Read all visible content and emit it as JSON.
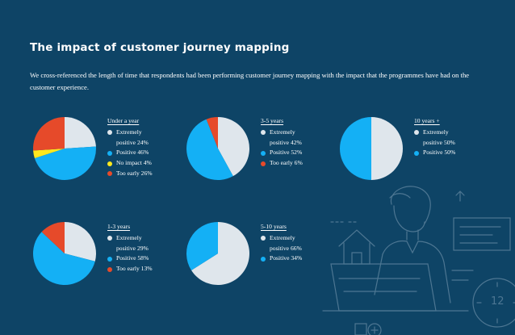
{
  "page": {
    "title": "The impact of customer journey mapping",
    "intro": "We cross-referenced the length of time that respondents had been performing customer journey mapping with the impact that the programmes have had on the customer experience.",
    "page_number": "12"
  },
  "colors": {
    "background": "#0e4466",
    "extremely_positive": "#dfe6ec",
    "positive": "#14b0f5",
    "no_impact": "#ffe81e",
    "too_early": "#e64a2a"
  },
  "chart_data": [
    {
      "type": "pie",
      "title": "Under a year",
      "start_angle_deg": 0,
      "series": [
        {
          "name": "Extremely positive",
          "value": 24,
          "label_lines": [
            "Extremely",
            "positive 24%"
          ],
          "color": "#dfe6ec"
        },
        {
          "name": "Positive",
          "value": 46,
          "label_lines": [
            "Positive 46%"
          ],
          "color": "#14b0f5"
        },
        {
          "name": "No impact",
          "value": 4,
          "label_lines": [
            "No impact 4%"
          ],
          "color": "#ffe81e"
        },
        {
          "name": "Too early",
          "value": 26,
          "label_lines": [
            "Too early 26%"
          ],
          "color": "#e64a2a"
        }
      ]
    },
    {
      "type": "pie",
      "title": "3-5 years",
      "start_angle_deg": 0,
      "series": [
        {
          "name": "Extremely positive",
          "value": 42,
          "label_lines": [
            "Extremely",
            "positive 42%"
          ],
          "color": "#dfe6ec"
        },
        {
          "name": "Positive",
          "value": 52,
          "label_lines": [
            "Positive 52%"
          ],
          "color": "#14b0f5"
        },
        {
          "name": "Too early",
          "value": 6,
          "label_lines": [
            "Too early 6%"
          ],
          "color": "#e64a2a"
        }
      ]
    },
    {
      "type": "pie",
      "title": "10 years +",
      "start_angle_deg": 0,
      "series": [
        {
          "name": "Extremely positive",
          "value": 50,
          "label_lines": [
            "Extremely",
            "positive 50%"
          ],
          "color": "#dfe6ec"
        },
        {
          "name": "Positive",
          "value": 50,
          "label_lines": [
            "Positive 50%"
          ],
          "color": "#14b0f5"
        }
      ]
    },
    {
      "type": "pie",
      "title": "1-3 years",
      "start_angle_deg": 0,
      "series": [
        {
          "name": "Extremely positive",
          "value": 29,
          "label_lines": [
            "Extremely",
            "positive 29%"
          ],
          "color": "#dfe6ec"
        },
        {
          "name": "Positive",
          "value": 58,
          "label_lines": [
            "Positive 58%"
          ],
          "color": "#14b0f5"
        },
        {
          "name": "Too early",
          "value": 13,
          "label_lines": [
            "Too early 13%"
          ],
          "color": "#e64a2a"
        }
      ]
    },
    {
      "type": "pie",
      "title": "5-10 years",
      "start_angle_deg": 0,
      "series": [
        {
          "name": "Extremely positive",
          "value": 66,
          "label_lines": [
            "Extremely",
            "positive 66%"
          ],
          "color": "#dfe6ec"
        },
        {
          "name": "Positive",
          "value": 34,
          "label_lines": [
            "Positive 34%"
          ],
          "color": "#14b0f5"
        }
      ]
    }
  ]
}
